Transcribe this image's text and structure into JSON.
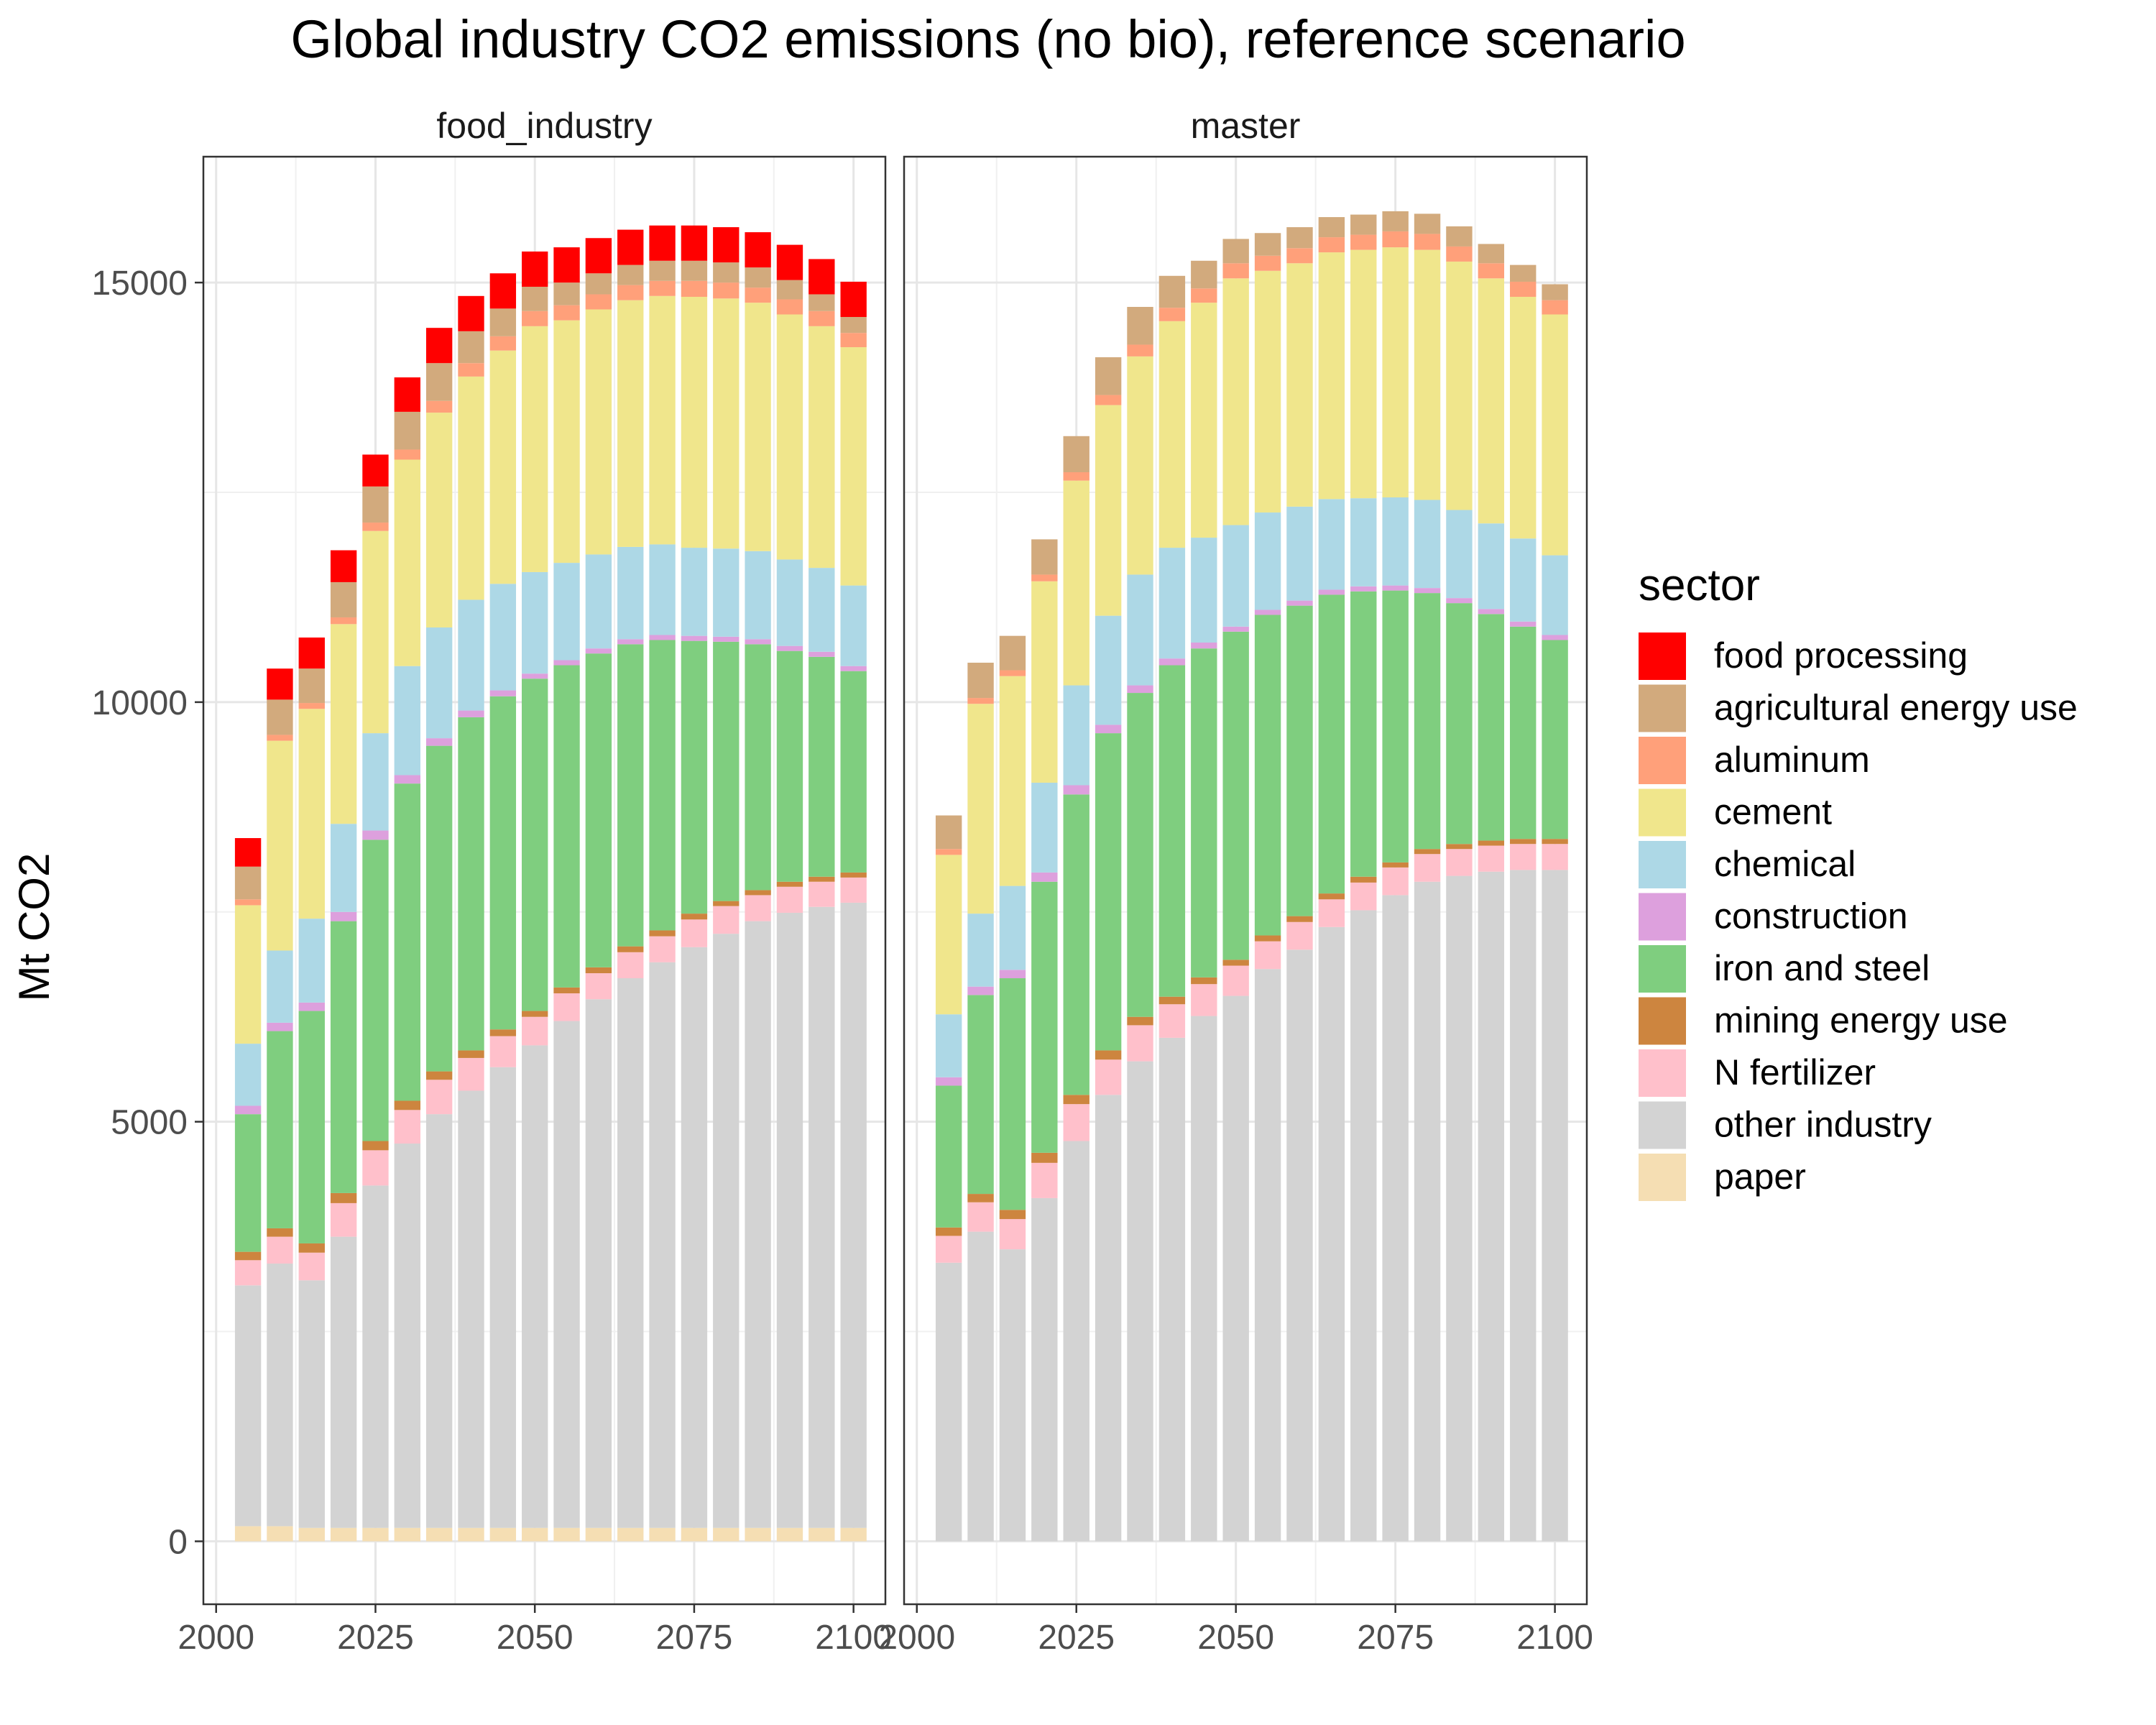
{
  "chart_data": {
    "type": "stacked-bar",
    "title": "Global industry CO2 emissions (no bio), reference scenario",
    "xlabel": "",
    "ylabel": "Mt CO2",
    "ylim": [
      -750,
      16500
    ],
    "xlim": [
      1998,
      2105
    ],
    "x_ticks": [
      2000,
      2025,
      2050,
      2075,
      2100
    ],
    "x_tick_labels": [
      "2000",
      "2025",
      "2050",
      "2075",
      "2100"
    ],
    "y_ticks": [
      0,
      5000,
      10000,
      15000
    ],
    "y_tick_labels": [
      "0",
      "5000",
      "10000",
      "15000"
    ],
    "grid": true,
    "legend": {
      "title": "sector",
      "position": "right",
      "entries": [
        {
          "key": "food",
          "label": "food processing",
          "color": "#ff0000"
        },
        {
          "key": "agri",
          "label": "agricultural energy use",
          "color": "#d2aa7d"
        },
        {
          "key": "alum",
          "label": "aluminum",
          "color": "#ffa07a"
        },
        {
          "key": "cem",
          "label": "cement",
          "color": "#f0e68c"
        },
        {
          "key": "chem",
          "label": "chemical",
          "color": "#add8e6"
        },
        {
          "key": "const",
          "label": "construction",
          "color": "#dda0dd"
        },
        {
          "key": "iron",
          "label": "iron and steel",
          "color": "#7fce7f"
        },
        {
          "key": "mining",
          "label": "mining energy use",
          "color": "#cd853f"
        },
        {
          "key": "nfert",
          "label": "N fertilizer",
          "color": "#ffc0cb"
        },
        {
          "key": "other",
          "label": "other industry",
          "color": "#d3d3d3"
        },
        {
          "key": "paper",
          "label": "paper",
          "color": "#f5deb3"
        }
      ]
    },
    "stack_order": [
      "paper",
      "other",
      "nfert",
      "mining",
      "iron",
      "const",
      "chem",
      "cem",
      "alum",
      "agri",
      "food"
    ],
    "panels": [
      {
        "name": "food_industry",
        "years": [
          2005,
          2010,
          2015,
          2020,
          2025,
          2030,
          2035,
          2040,
          2045,
          2050,
          2055,
          2060,
          2065,
          2070,
          2075,
          2080,
          2085,
          2090,
          2095,
          2100
        ],
        "series": [
          {
            "key": "paper",
            "values": [
              180,
              180,
              160,
              160,
              160,
              160,
              160,
              160,
              160,
              160,
              160,
              160,
              160,
              160,
              160,
              160,
              160,
              160,
              160,
              160
            ]
          },
          {
            "key": "other",
            "values": [
              2870,
              3130,
              2950,
              3470,
              4080,
              4580,
              4930,
              5210,
              5490,
              5750,
              6040,
              6300,
              6550,
              6740,
              6920,
              7080,
              7230,
              7330,
              7400,
              7450
            ]
          },
          {
            "key": "nfert",
            "values": [
              300,
              320,
              330,
              400,
              420,
              400,
              410,
              390,
              370,
              340,
              330,
              310,
              310,
              310,
              330,
              330,
              310,
              310,
              300,
              300
            ]
          },
          {
            "key": "mining",
            "values": [
              100,
              100,
              110,
              120,
              110,
              110,
              100,
              90,
              80,
              70,
              70,
              70,
              70,
              70,
              70,
              60,
              60,
              60,
              60,
              60
            ]
          },
          {
            "key": "iron",
            "values": [
              1640,
              2350,
              2770,
              3240,
              3590,
              3780,
              3880,
              3970,
              3970,
              3960,
              3840,
              3740,
              3600,
              3460,
              3250,
              3090,
              2930,
              2750,
              2620,
              2400
            ]
          },
          {
            "key": "const",
            "values": [
              100,
              100,
              100,
              110,
              110,
              100,
              90,
              80,
              70,
              60,
              60,
              60,
              60,
              60,
              60,
              60,
              60,
              60,
              60,
              60
            ]
          },
          {
            "key": "chem",
            "values": [
              740,
              860,
              1000,
              1050,
              1160,
              1300,
              1320,
              1320,
              1270,
              1210,
              1160,
              1120,
              1100,
              1080,
              1050,
              1050,
              1050,
              1030,
              1000,
              960
            ]
          },
          {
            "key": "cem",
            "values": [
              1650,
              2500,
              2500,
              2380,
              2410,
              2460,
              2560,
              2660,
              2780,
              2930,
              2890,
              2920,
              2940,
              2960,
              2990,
              2980,
              2960,
              2920,
              2880,
              2840
            ]
          },
          {
            "key": "alum",
            "values": [
              70,
              70,
              70,
              80,
              100,
              120,
              140,
              160,
              170,
              180,
              180,
              180,
              180,
              180,
              190,
              190,
              180,
              180,
              180,
              170
            ]
          },
          {
            "key": "agri",
            "values": [
              390,
              420,
              410,
              420,
              430,
              450,
              450,
              380,
              330,
              290,
              270,
              250,
              240,
              240,
              240,
              240,
              240,
              230,
              200,
              190
            ]
          },
          {
            "key": "food",
            "values": [
              340,
              370,
              370,
              380,
              380,
              410,
              420,
              420,
              420,
              420,
              420,
              420,
              420,
              420,
              420,
              420,
              420,
              420,
              420,
              420
            ]
          }
        ]
      },
      {
        "name": "master",
        "years": [
          2005,
          2010,
          2015,
          2020,
          2025,
          2030,
          2035,
          2040,
          2045,
          2050,
          2055,
          2060,
          2065,
          2070,
          2075,
          2080,
          2085,
          2090,
          2095,
          2100
        ],
        "series": [
          {
            "key": "paper",
            "values": [
              0,
              0,
              0,
              0,
              0,
              0,
              0,
              0,
              0,
              0,
              0,
              0,
              0,
              0,
              0,
              0,
              0,
              0,
              0,
              0
            ]
          },
          {
            "key": "other",
            "values": [
              3320,
              3690,
              3480,
              4090,
              4770,
              5320,
              5720,
              6000,
              6260,
              6500,
              6820,
              7050,
              7320,
              7520,
              7700,
              7860,
              7930,
              7980,
              8000,
              8000
            ]
          },
          {
            "key": "nfert",
            "values": [
              320,
              350,
              360,
              420,
              440,
              420,
              430,
              400,
              380,
              360,
              330,
              330,
              330,
              330,
              330,
              330,
              320,
              310,
              310,
              310
            ]
          },
          {
            "key": "mining",
            "values": [
              100,
              100,
              110,
              120,
              110,
              110,
              100,
              90,
              80,
              70,
              70,
              70,
              70,
              70,
              60,
              60,
              60,
              60,
              60,
              60
            ]
          },
          {
            "key": "iron",
            "values": [
              1690,
              2370,
              2760,
              3230,
              3580,
              3780,
              3860,
              3950,
              3920,
              3910,
              3820,
              3700,
              3560,
              3400,
              3240,
              3050,
              2870,
              2700,
              2530,
              2370
            ]
          },
          {
            "key": "const",
            "values": [
              100,
              100,
              100,
              110,
              110,
              100,
              90,
              80,
              70,
              60,
              60,
              60,
              60,
              60,
              60,
              60,
              60,
              60,
              60,
              60
            ]
          },
          {
            "key": "chem",
            "values": [
              750,
              870,
              1000,
              1070,
              1190,
              1300,
              1320,
              1320,
              1250,
              1210,
              1160,
              1120,
              1080,
              1050,
              1050,
              1050,
              1050,
              1020,
              990,
              950
            ]
          },
          {
            "key": "cem",
            "values": [
              1900,
              2500,
              2500,
              2400,
              2440,
              2510,
              2600,
              2700,
              2800,
              2940,
              2880,
              2900,
              2940,
              2960,
              2980,
              2980,
              2960,
              2920,
              2880,
              2870
            ]
          },
          {
            "key": "alum",
            "values": [
              70,
              70,
              70,
              80,
              100,
              120,
              140,
              160,
              170,
              180,
              180,
              180,
              180,
              180,
              190,
              190,
              180,
              180,
              180,
              170
            ]
          },
          {
            "key": "agri",
            "values": [
              400,
              420,
              410,
              420,
              430,
              450,
              450,
              380,
              330,
              290,
              270,
              250,
              240,
              240,
              240,
              240,
              240,
              230,
              200,
              190
            ]
          }
        ]
      }
    ]
  }
}
